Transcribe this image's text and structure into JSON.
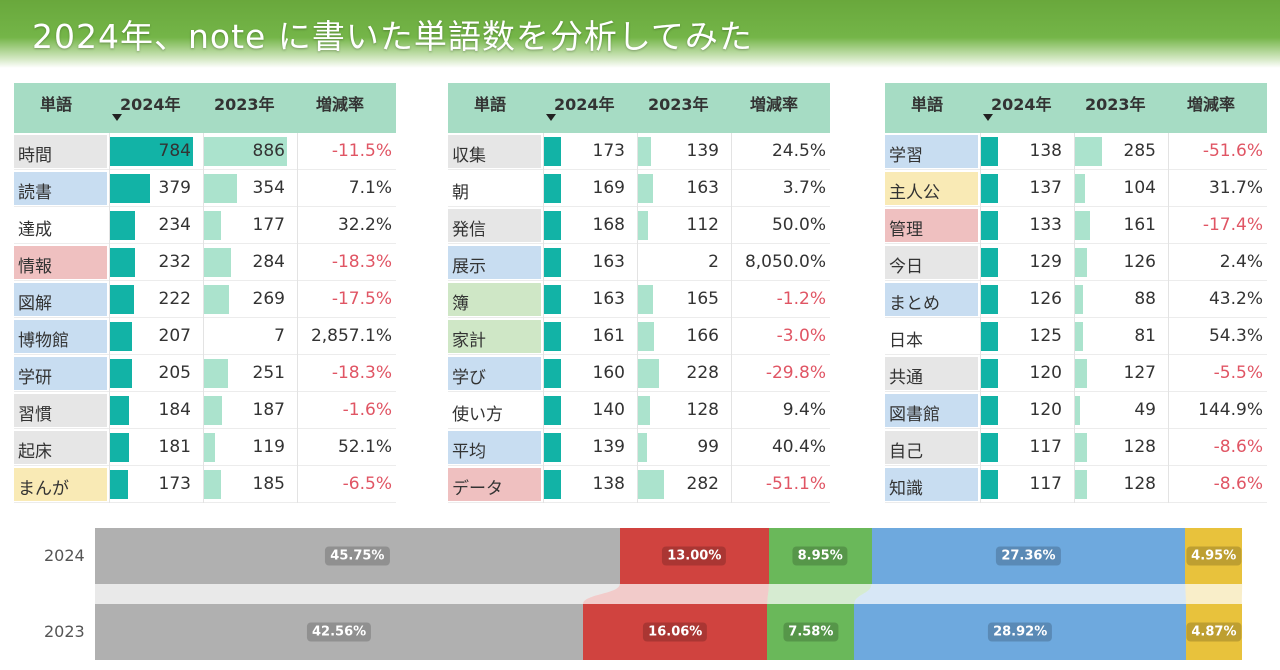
{
  "title": "2024年、note に書いた単語数を分析してみた",
  "colors": {
    "gray": "#b0b0b0",
    "red": "#d0433f",
    "green": "#6ab85a",
    "blue": "#6ea9de",
    "yellow": "#e8c23c",
    "bar2024": "#12b3a6",
    "bar2023": "#abe3cd",
    "negative": "#e05564"
  },
  "tables": [
    {
      "headers": {
        "word": "単語",
        "y2024": "2024年",
        "y2023": "2023年",
        "rate": "増減率"
      },
      "rows": [
        {
          "word": "時間",
          "cat": "gray",
          "v2024": 784,
          "v2023": 886,
          "v2024_label": "784",
          "v2023_label": "886",
          "rate": "-11.5%",
          "neg": true
        },
        {
          "word": "読書",
          "cat": "blue",
          "v2024": 379,
          "v2023": 354,
          "v2024_label": "379",
          "v2023_label": "354",
          "rate": "7.1%",
          "neg": false
        },
        {
          "word": "達成",
          "cat": "none",
          "v2024": 234,
          "v2023": 177,
          "v2024_label": "234",
          "v2023_label": "177",
          "rate": "32.2%",
          "neg": false
        },
        {
          "word": "情報",
          "cat": "red",
          "v2024": 232,
          "v2023": 284,
          "v2024_label": "232",
          "v2023_label": "284",
          "rate": "-18.3%",
          "neg": true
        },
        {
          "word": "図解",
          "cat": "blue",
          "v2024": 222,
          "v2023": 269,
          "v2024_label": "222",
          "v2023_label": "269",
          "rate": "-17.5%",
          "neg": true
        },
        {
          "word": "博物館",
          "cat": "blue",
          "v2024": 207,
          "v2023": 7,
          "v2024_label": "207",
          "v2023_label": "7",
          "rate": "2,857.1%",
          "neg": false
        },
        {
          "word": "学研",
          "cat": "blue",
          "v2024": 205,
          "v2023": 251,
          "v2024_label": "205",
          "v2023_label": "251",
          "rate": "-18.3%",
          "neg": true
        },
        {
          "word": "習慣",
          "cat": "gray",
          "v2024": 184,
          "v2023": 187,
          "v2024_label": "184",
          "v2023_label": "187",
          "rate": "-1.6%",
          "neg": true
        },
        {
          "word": "起床",
          "cat": "gray",
          "v2024": 181,
          "v2023": 119,
          "v2024_label": "181",
          "v2023_label": "119",
          "rate": "52.1%",
          "neg": false
        },
        {
          "word": "まんが",
          "cat": "yellow",
          "v2024": 173,
          "v2023": 185,
          "v2024_label": "173",
          "v2023_label": "185",
          "rate": "-6.5%",
          "neg": true
        }
      ]
    },
    {
      "headers": {
        "word": "単語",
        "y2024": "2024年",
        "y2023": "2023年",
        "rate": "増減率"
      },
      "rows": [
        {
          "word": "収集",
          "cat": "gray",
          "v2024": 173,
          "v2023": 139,
          "v2024_label": "173",
          "v2023_label": "139",
          "rate": "24.5%",
          "neg": false
        },
        {
          "word": "朝",
          "cat": "none",
          "v2024": 169,
          "v2023": 163,
          "v2024_label": "169",
          "v2023_label": "163",
          "rate": "3.7%",
          "neg": false
        },
        {
          "word": "発信",
          "cat": "gray",
          "v2024": 168,
          "v2023": 112,
          "v2024_label": "168",
          "v2023_label": "112",
          "rate": "50.0%",
          "neg": false
        },
        {
          "word": "展示",
          "cat": "blue",
          "v2024": 163,
          "v2023": 2,
          "v2024_label": "163",
          "v2023_label": "2",
          "rate": "8,050.0%",
          "neg": false
        },
        {
          "word": "簿",
          "cat": "green",
          "v2024": 163,
          "v2023": 165,
          "v2024_label": "163",
          "v2023_label": "165",
          "rate": "-1.2%",
          "neg": true
        },
        {
          "word": "家計",
          "cat": "green",
          "v2024": 161,
          "v2023": 166,
          "v2024_label": "161",
          "v2023_label": "166",
          "rate": "-3.0%",
          "neg": true
        },
        {
          "word": "学び",
          "cat": "blue",
          "v2024": 160,
          "v2023": 228,
          "v2024_label": "160",
          "v2023_label": "228",
          "rate": "-29.8%",
          "neg": true
        },
        {
          "word": "使い方",
          "cat": "none",
          "v2024": 140,
          "v2023": 128,
          "v2024_label": "140",
          "v2023_label": "128",
          "rate": "9.4%",
          "neg": false
        },
        {
          "word": "平均",
          "cat": "blue",
          "v2024": 139,
          "v2023": 99,
          "v2024_label": "139",
          "v2023_label": "99",
          "rate": "40.4%",
          "neg": false
        },
        {
          "word": "データ",
          "cat": "red",
          "v2024": 138,
          "v2023": 282,
          "v2024_label": "138",
          "v2023_label": "282",
          "rate": "-51.1%",
          "neg": true
        }
      ]
    },
    {
      "headers": {
        "word": "単語",
        "y2024": "2024年",
        "y2023": "2023年",
        "rate": "増減率"
      },
      "rows": [
        {
          "word": "学習",
          "cat": "blue",
          "v2024": 138,
          "v2023": 285,
          "v2024_label": "138",
          "v2023_label": "285",
          "rate": "-51.6%",
          "neg": true
        },
        {
          "word": "主人公",
          "cat": "yellow",
          "v2024": 137,
          "v2023": 104,
          "v2024_label": "137",
          "v2023_label": "104",
          "rate": "31.7%",
          "neg": false
        },
        {
          "word": "管理",
          "cat": "red",
          "v2024": 133,
          "v2023": 161,
          "v2024_label": "133",
          "v2023_label": "161",
          "rate": "-17.4%",
          "neg": true
        },
        {
          "word": "今日",
          "cat": "gray",
          "v2024": 129,
          "v2023": 126,
          "v2024_label": "129",
          "v2023_label": "126",
          "rate": "2.4%",
          "neg": false
        },
        {
          "word": "まとめ",
          "cat": "blue",
          "v2024": 126,
          "v2023": 88,
          "v2024_label": "126",
          "v2023_label": "88",
          "rate": "43.2%",
          "neg": false
        },
        {
          "word": "日本",
          "cat": "none",
          "v2024": 125,
          "v2023": 81,
          "v2024_label": "125",
          "v2023_label": "81",
          "rate": "54.3%",
          "neg": false
        },
        {
          "word": "共通",
          "cat": "gray",
          "v2024": 120,
          "v2023": 127,
          "v2024_label": "120",
          "v2023_label": "127",
          "rate": "-5.5%",
          "neg": true
        },
        {
          "word": "図書館",
          "cat": "blue",
          "v2024": 120,
          "v2023": 49,
          "v2024_label": "120",
          "v2023_label": "49",
          "rate": "144.9%",
          "neg": false
        },
        {
          "word": "自己",
          "cat": "gray",
          "v2024": 117,
          "v2023": 128,
          "v2024_label": "117",
          "v2023_label": "128",
          "rate": "-8.6%",
          "neg": true
        },
        {
          "word": "知識",
          "cat": "blue",
          "v2024": 117,
          "v2023": 128,
          "v2024_label": "117",
          "v2023_label": "128",
          "rate": "-8.6%",
          "neg": true
        }
      ]
    }
  ],
  "chart_data": {
    "type": "bar",
    "stacked": "100%",
    "orientation": "horizontal",
    "categories": [
      "2024",
      "2023"
    ],
    "series": [
      {
        "color": "gray",
        "values": [
          45.75,
          42.56
        ],
        "labels": [
          "45.75%",
          "42.56%"
        ]
      },
      {
        "color": "red",
        "values": [
          13.0,
          16.06
        ],
        "labels": [
          "13.00%",
          "16.06%"
        ]
      },
      {
        "color": "green",
        "values": [
          8.95,
          7.58
        ],
        "labels": [
          "8.95%",
          "7.58%"
        ]
      },
      {
        "color": "blue",
        "values": [
          27.36,
          28.92
        ],
        "labels": [
          "27.36%",
          "28.92%"
        ]
      },
      {
        "color": "yellow",
        "values": [
          4.95,
          4.87
        ],
        "labels": [
          "4.95%",
          "4.87%"
        ]
      }
    ]
  }
}
